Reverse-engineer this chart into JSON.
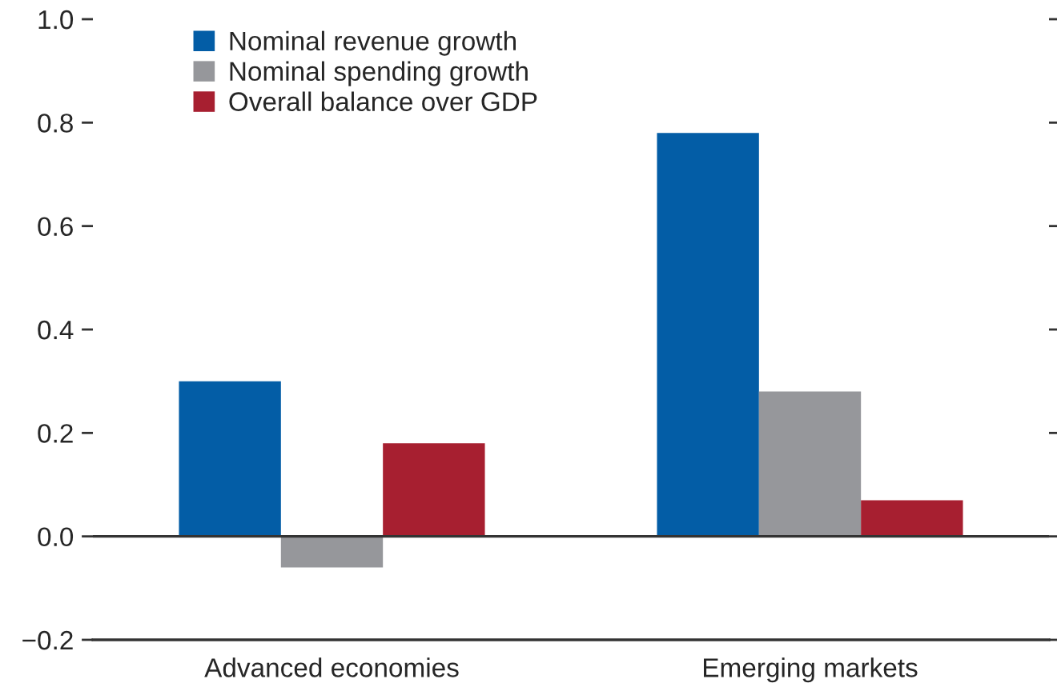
{
  "chart_data": {
    "type": "bar",
    "categories": [
      "Advanced economies",
      "Emerging markets"
    ],
    "series": [
      {
        "name": "Nominal revenue growth",
        "color": "#035da6",
        "values": [
          0.3,
          0.78
        ]
      },
      {
        "name": "Nominal spending growth",
        "color": "#96979b",
        "values": [
          -0.06,
          0.28
        ]
      },
      {
        "name": "Overall balance over GDP",
        "color": "#a71f30",
        "values": [
          0.18,
          0.07
        ]
      }
    ],
    "ylim": [
      -0.2,
      1.0
    ],
    "yticks": [
      {
        "value": -0.2,
        "label": "−0.2"
      },
      {
        "value": 0.0,
        "label": "0.0"
      },
      {
        "value": 0.2,
        "label": "0.2"
      },
      {
        "value": 0.4,
        "label": "0.4"
      },
      {
        "value": 0.6,
        "label": "0.6"
      },
      {
        "value": 0.8,
        "label": "0.8"
      },
      {
        "value": 1.0,
        "label": "1.0"
      }
    ],
    "ref_lines": [
      {
        "axis": "y",
        "value": 0,
        "color": "#333333"
      }
    ],
    "legend": "top left",
    "grid": false
  }
}
